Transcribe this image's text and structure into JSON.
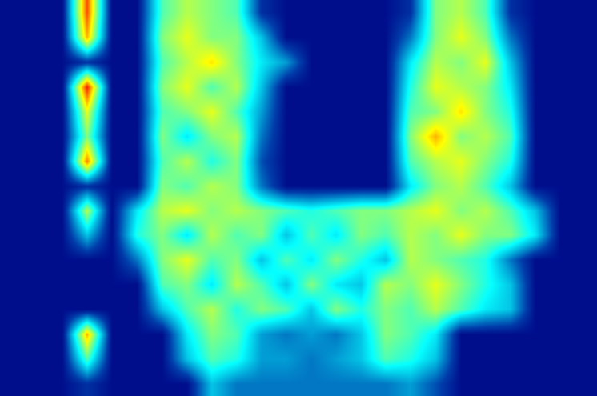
{
  "chart_data": {
    "type": "heatmap",
    "color": "Jet",
    "zlim": [
      0,
      1
    ],
    "tick_labels": false,
    "cells": [
      [
        0.03,
        0.03,
        0.03,
        0.8,
        0.03,
        0.03,
        0.45,
        0.55,
        0.5,
        0.45,
        0.1,
        0.03,
        0.03,
        0.03,
        0.03,
        0.03,
        0.1,
        0.5,
        0.55,
        0.45,
        0.1,
        0.03,
        0.03,
        0.03
      ],
      [
        0.03,
        0.03,
        0.03,
        0.7,
        0.03,
        0.03,
        0.5,
        0.6,
        0.5,
        0.5,
        0.3,
        0.03,
        0.03,
        0.03,
        0.03,
        0.03,
        0.2,
        0.5,
        0.6,
        0.5,
        0.2,
        0.03,
        0.03,
        0.03
      ],
      [
        0.03,
        0.03,
        0.03,
        0.1,
        0.03,
        0.03,
        0.45,
        0.55,
        0.65,
        0.5,
        0.35,
        0.25,
        0.03,
        0.03,
        0.03,
        0.03,
        0.35,
        0.55,
        0.5,
        0.6,
        0.3,
        0.03,
        0.03,
        0.03
      ],
      [
        0.03,
        0.03,
        0.03,
        0.85,
        0.03,
        0.03,
        0.5,
        0.6,
        0.45,
        0.55,
        0.3,
        0.03,
        0.03,
        0.03,
        0.03,
        0.03,
        0.4,
        0.6,
        0.55,
        0.5,
        0.35,
        0.03,
        0.03,
        0.03
      ],
      [
        0.03,
        0.03,
        0.03,
        0.6,
        0.03,
        0.03,
        0.45,
        0.5,
        0.6,
        0.45,
        0.25,
        0.03,
        0.03,
        0.03,
        0.03,
        0.03,
        0.45,
        0.5,
        0.65,
        0.5,
        0.4,
        0.03,
        0.03,
        0.03
      ],
      [
        0.03,
        0.03,
        0.03,
        0.5,
        0.03,
        0.03,
        0.5,
        0.35,
        0.5,
        0.55,
        0.2,
        0.03,
        0.03,
        0.03,
        0.03,
        0.03,
        0.5,
        0.7,
        0.5,
        0.55,
        0.45,
        0.03,
        0.03,
        0.03
      ],
      [
        0.03,
        0.03,
        0.03,
        0.75,
        0.03,
        0.03,
        0.45,
        0.55,
        0.4,
        0.5,
        0.15,
        0.03,
        0.03,
        0.03,
        0.03,
        0.03,
        0.45,
        0.55,
        0.6,
        0.5,
        0.4,
        0.03,
        0.03,
        0.03
      ],
      [
        0.03,
        0.03,
        0.03,
        0.1,
        0.03,
        0.03,
        0.5,
        0.45,
        0.55,
        0.5,
        0.2,
        0.03,
        0.03,
        0.03,
        0.03,
        0.03,
        0.35,
        0.5,
        0.55,
        0.45,
        0.3,
        0.03,
        0.03,
        0.03
      ],
      [
        0.03,
        0.03,
        0.03,
        0.55,
        0.03,
        0.35,
        0.55,
        0.6,
        0.5,
        0.55,
        0.5,
        0.45,
        0.4,
        0.45,
        0.5,
        0.5,
        0.55,
        0.6,
        0.5,
        0.55,
        0.45,
        0.3,
        0.03,
        0.03
      ],
      [
        0.03,
        0.03,
        0.03,
        0.3,
        0.03,
        0.4,
        0.5,
        0.35,
        0.55,
        0.45,
        0.5,
        0.3,
        0.45,
        0.35,
        0.5,
        0.45,
        0.55,
        0.5,
        0.6,
        0.5,
        0.5,
        0.35,
        0.03,
        0.03
      ],
      [
        0.03,
        0.03,
        0.03,
        0.03,
        0.03,
        0.2,
        0.5,
        0.6,
        0.45,
        0.5,
        0.3,
        0.45,
        0.35,
        0.5,
        0.4,
        0.3,
        0.55,
        0.5,
        0.45,
        0.4,
        0.2,
        0.03,
        0.03,
        0.03
      ],
      [
        0.03,
        0.03,
        0.03,
        0.03,
        0.03,
        0.03,
        0.45,
        0.5,
        0.35,
        0.55,
        0.45,
        0.3,
        0.5,
        0.35,
        0.3,
        0.55,
        0.5,
        0.6,
        0.5,
        0.4,
        0.3,
        0.03,
        0.03,
        0.03
      ],
      [
        0.03,
        0.03,
        0.03,
        0.03,
        0.03,
        0.03,
        0.3,
        0.45,
        0.55,
        0.4,
        0.5,
        0.45,
        0.3,
        0.5,
        0.4,
        0.5,
        0.45,
        0.55,
        0.45,
        0.35,
        0.3,
        0.03,
        0.03,
        0.03
      ],
      [
        0.03,
        0.03,
        0.03,
        0.7,
        0.03,
        0.03,
        0.03,
        0.35,
        0.5,
        0.45,
        0.25,
        0.2,
        0.25,
        0.2,
        0.3,
        0.5,
        0.45,
        0.35,
        0.03,
        0.03,
        0.03,
        0.03,
        0.03,
        0.03
      ],
      [
        0.03,
        0.03,
        0.03,
        0.45,
        0.03,
        0.03,
        0.03,
        0.3,
        0.45,
        0.4,
        0.25,
        0.25,
        0.2,
        0.25,
        0.3,
        0.45,
        0.4,
        0.3,
        0.03,
        0.03,
        0.03,
        0.03,
        0.03,
        0.03
      ],
      [
        0.03,
        0.03,
        0.03,
        0.1,
        0.03,
        0.03,
        0.03,
        0.03,
        0.3,
        0.2,
        0.2,
        0.2,
        0.2,
        0.2,
        0.2,
        0.2,
        0.25,
        0.15,
        0.03,
        0.03,
        0.03,
        0.03,
        0.03,
        0.03
      ]
    ]
  }
}
